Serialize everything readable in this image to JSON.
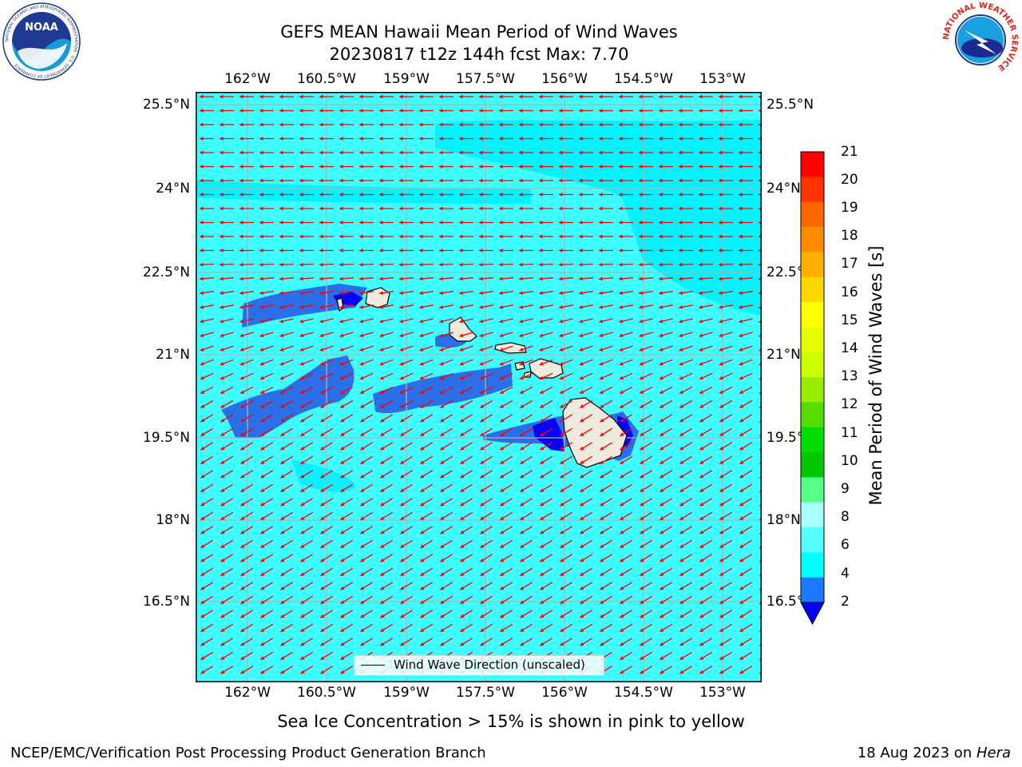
{
  "title": {
    "line1": "GEFS MEAN Hawaii Mean Period of Wind Waves",
    "line2": "20230817 t12z 144h fcst   Max: 7.70"
  },
  "axes": {
    "lon_ticks": [
      "162°W",
      "160.5°W",
      "159°W",
      "157.5°W",
      "156°W",
      "154.5°W",
      "153°W"
    ],
    "lat_ticks": [
      "25.5°N",
      "24°N",
      "22.5°N",
      "21°N",
      "19.5°N",
      "18°N",
      "16.5°N"
    ]
  },
  "colorbar": {
    "label": "Mean Period of Wind Waves [s]",
    "ticks": [
      "21",
      "20",
      "19",
      "18",
      "17",
      "16",
      "15",
      "14",
      "13",
      "12",
      "11",
      "10",
      "9",
      "8",
      "6",
      "4",
      "2"
    ],
    "colors": [
      "#ff0000",
      "#ff3300",
      "#ff6600",
      "#ff8c00",
      "#ffb000",
      "#ffd700",
      "#ffff00",
      "#e6ff00",
      "#ccff00",
      "#99ee00",
      "#55dd00",
      "#00dd00",
      "#00c800",
      "#55ff88",
      "#aaffff",
      "#55ffff",
      "#00ffff",
      "#1e78ff",
      "#0000ff"
    ]
  },
  "legend": {
    "label": "Wind Wave Direction (unscaled)"
  },
  "note": "Sea Ice Concentration > 15% is shown in pink to yellow",
  "footer": {
    "left": "NCEP/EMC/Verification Post Processing Product Generation Branch",
    "right_date": "18 Aug 2023 on ",
    "right_host": "Hera"
  },
  "logos": {
    "noaa_text": "NOAA",
    "noaa_ring": "NATIONAL OCEANIC AND ATMOSPHERIC ADMINISTRATION · U.S. DEPARTMENT OF COMMERCE",
    "nws_ring": "NATIONAL WEATHER SERVICE"
  },
  "map": {
    "ocean_color": "#3dffff",
    "land_color": "#eeeadd",
    "low_period_color": "#2a6ee8",
    "arrow_color": "#ff0000",
    "islands": [
      "Kauai",
      "Oahu",
      "Molokai",
      "Maui",
      "Hawaii"
    ]
  }
}
